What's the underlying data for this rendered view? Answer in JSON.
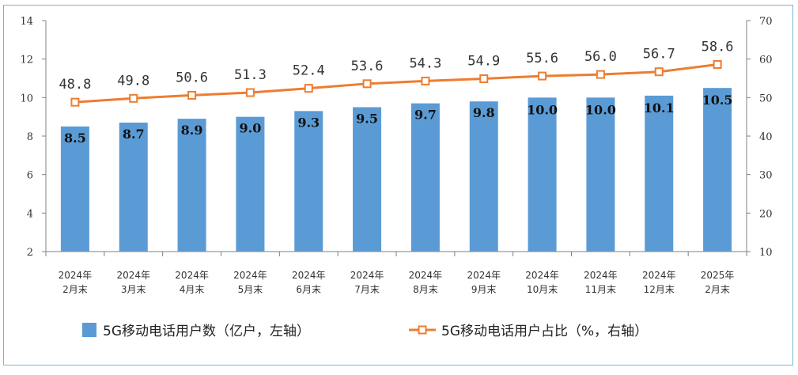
{
  "chart_data": {
    "type": "bar+line",
    "categories": [
      [
        "2024年",
        "2月末"
      ],
      [
        "2024年",
        "3月末"
      ],
      [
        "2024年",
        "4月末"
      ],
      [
        "2024年",
        "5月末"
      ],
      [
        "2024年",
        "6月末"
      ],
      [
        "2024年",
        "7月末"
      ],
      [
        "2024年",
        "8月末"
      ],
      [
        "2024年",
        "9月末"
      ],
      [
        "2024年",
        "10月末"
      ],
      [
        "2024年",
        "11月末"
      ],
      [
        "2024年",
        "12月末"
      ],
      [
        "2025年",
        "2月末"
      ]
    ],
    "series": [
      {
        "name": "5G移动电话用户数（亿户，左轴）",
        "type": "bar",
        "axis": "left",
        "values": [
          8.5,
          8.7,
          8.9,
          9.0,
          9.3,
          9.5,
          9.7,
          9.8,
          10.0,
          10.0,
          10.1,
          10.5
        ],
        "labels": [
          "8.5",
          "8.7",
          "8.9",
          "9.0",
          "9.3",
          "9.5",
          "9.7",
          "9.8",
          "10.0",
          "10.0",
          "10.1",
          "10.5"
        ],
        "color": "#5b9bd5"
      },
      {
        "name": "5G移动电话用户占比（%，右轴）",
        "type": "line",
        "axis": "right",
        "values": [
          48.8,
          49.8,
          50.6,
          51.3,
          52.4,
          53.6,
          54.3,
          54.9,
          55.6,
          56.0,
          56.7,
          58.6
        ],
        "labels": [
          "48.8",
          "49.8",
          "50.6",
          "51.3",
          "52.4",
          "53.6",
          "54.3",
          "54.9",
          "55.6",
          "56.0",
          "56.7",
          "58.6"
        ],
        "color": "#ed7d31",
        "marker": "square-hollow"
      }
    ],
    "y_left": {
      "min": 2,
      "max": 14,
      "ticks": [
        2,
        4,
        6,
        8,
        10,
        12,
        14
      ]
    },
    "y_right": {
      "min": 10,
      "max": 70,
      "ticks": [
        10,
        20,
        30,
        40,
        50,
        60,
        70
      ]
    },
    "grid": false,
    "legend_position": "bottom"
  }
}
